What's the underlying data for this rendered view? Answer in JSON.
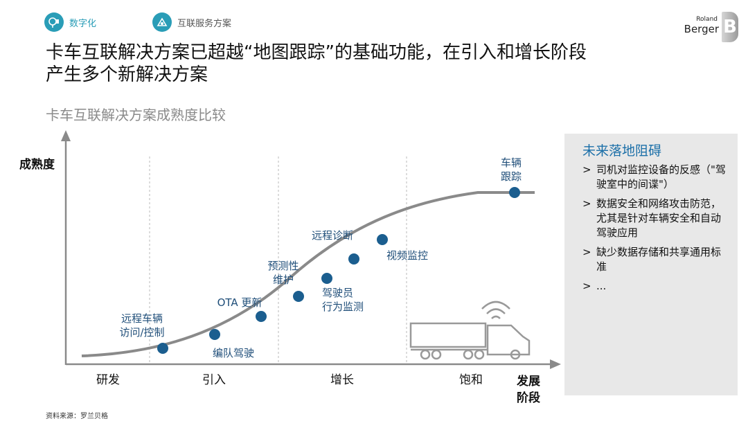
{
  "header": {
    "nav": [
      {
        "label": "数字化",
        "icon": "digital-icon"
      },
      {
        "label": "互联服务方案",
        "icon": "connected-service-icon"
      }
    ],
    "logo": {
      "line1": "Roland",
      "line2": "Berger",
      "mark": "B"
    }
  },
  "title": {
    "line1": "卡车互联解决方案已超越“地图跟踪”的基础功能，在引入和增长阶段",
    "line2": "产生多个新解决方案"
  },
  "subtitle": "卡车互联解决方案成熟度比较",
  "diagram": {
    "y_axis_label": "成熟度",
    "x_axis_label": [
      "发展",
      "阶段"
    ],
    "stages": [
      "研发",
      "引入",
      "增长",
      "饱和"
    ],
    "points": [
      {
        "label": [
          "远程车辆",
          "访问/控制"
        ]
      },
      {
        "label": [
          "编队驾驶"
        ]
      },
      {
        "label": [
          "OTA 更新"
        ]
      },
      {
        "label": [
          "预测性",
          "维护"
        ]
      },
      {
        "label": [
          "驾驶员",
          "行为监测"
        ]
      },
      {
        "label": [
          "远程诊断"
        ]
      },
      {
        "label": [
          "视频监控"
        ]
      },
      {
        "label": [
          "车辆",
          "跟踪"
        ]
      }
    ],
    "colors": {
      "point": "#1b5e8f",
      "curve": "#8a8a8a",
      "label": "#1f4e79",
      "divider": "#b9b9b9",
      "accent": "#1b6fa8"
    }
  },
  "sidebar": {
    "title": "未来落地阻碍",
    "bullet": ">",
    "items": [
      "司机对监控设备的反感（\"驾驶室中的间谍\"）",
      "数据安全和网络攻击防范，尤其是针对车辆安全和自动驾驶应用",
      "缺少数据存储和共享通用标准",
      "..."
    ]
  },
  "source": "资料来源：罗兰贝格"
}
